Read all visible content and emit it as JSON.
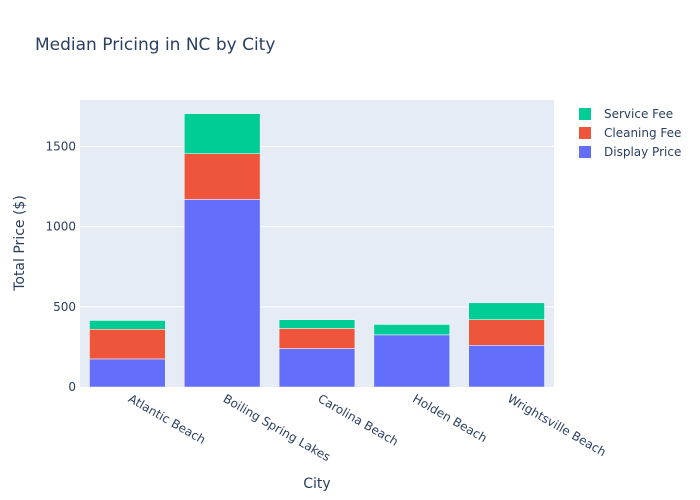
{
  "chart_data": {
    "type": "bar",
    "stacked": true,
    "title": "Median Pricing in NC by City",
    "xlabel": "City",
    "ylabel": "Total Price ($)",
    "categories": [
      "Atlantic Beach",
      "Boiling Spring Lakes",
      "Carolina Beach",
      "Holden Beach",
      "Wrightsville Beach"
    ],
    "series": [
      {
        "name": "Display Price",
        "color": "#636efa",
        "values": [
          175,
          1170,
          240,
          325,
          260
        ]
      },
      {
        "name": "Cleaning Fee",
        "color": "#ef553b",
        "values": [
          185,
          285,
          125,
          0,
          160
        ]
      },
      {
        "name": "Service Fee",
        "color": "#00cc96",
        "values": [
          55,
          250,
          55,
          65,
          105
        ]
      }
    ],
    "legend_order": [
      "Service Fee",
      "Cleaning Fee",
      "Display Price"
    ],
    "ylim": [
      0,
      1790
    ],
    "yticks": [
      0,
      500,
      1000,
      1500
    ],
    "grid": true,
    "legend_position": "top-right",
    "plot_background": "#e5ecf6"
  }
}
